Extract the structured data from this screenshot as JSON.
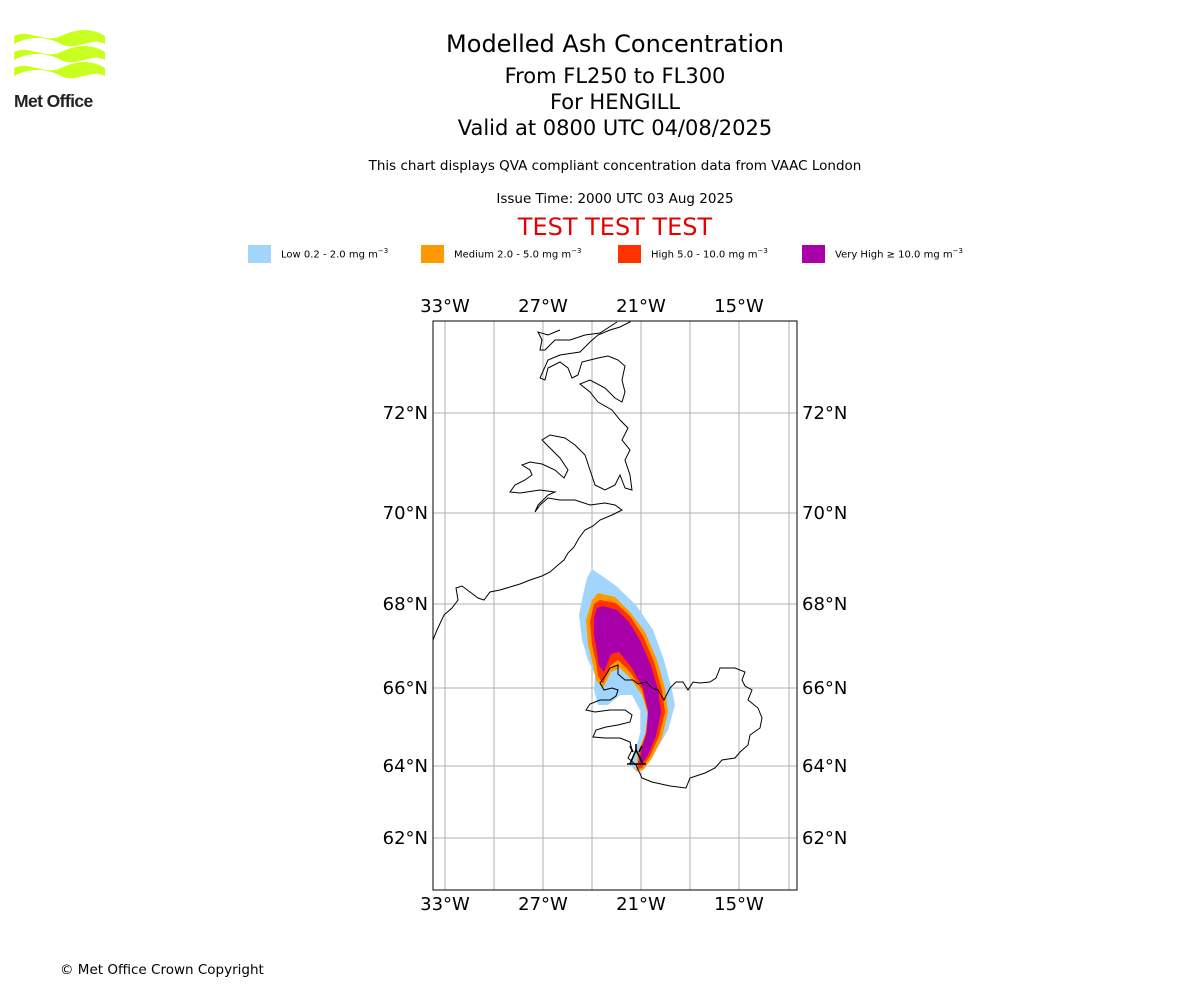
{
  "logo": {
    "name": "Met Office",
    "icon": "met-office-waves-icon",
    "color": "#c8ff1e"
  },
  "header": {
    "title": "Modelled Ash Concentration",
    "line1": "From FL250 to FL300",
    "line2": "For HENGILL",
    "line3": "Valid at 0800 UTC 04/08/2025",
    "compliance": "This chart displays QVA compliant concentration data from VAAC London",
    "issue_time": "Issue Time: 2000 UTC 03 Aug 2025",
    "test_banner": "TEST TEST TEST",
    "test_color": "#e60000"
  },
  "legend": [
    {
      "label": "Low 0.2 - 2.0 mg m",
      "color": "#a2d5fb"
    },
    {
      "label": "Medium 2.0 - 5.0 mg m",
      "color": "#ff9900"
    },
    {
      "label": "High 5.0 - 10.0 mg m",
      "color": "#ff3300"
    },
    {
      "label": "Very High ≥ 10.0 mg m",
      "color": "#aa00aa"
    }
  ],
  "legend_unit_exponent": "−3",
  "map": {
    "lon_ticks": [
      "33°W",
      "27°W",
      "21°W",
      "15°W"
    ],
    "lat_ticks": [
      "72°N",
      "70°N",
      "68°N",
      "66°N",
      "64°N",
      "62°N"
    ],
    "volcano": "HENGILL",
    "grid": true
  },
  "footer": {
    "copyright": "© Met Office Crown Copyright"
  }
}
